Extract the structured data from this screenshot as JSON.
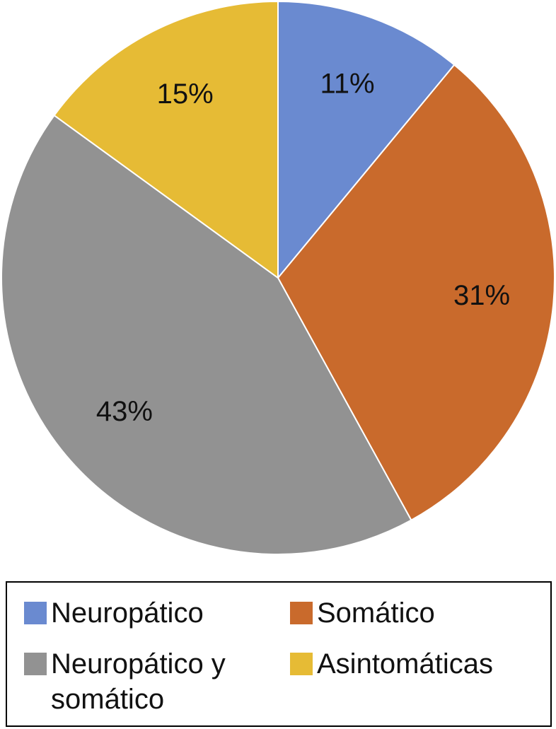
{
  "chart_data": {
    "type": "pie",
    "categories": [
      "Neuropático",
      "Somático",
      "Neuropático y somático",
      "Asintomáticas"
    ],
    "values": [
      11,
      31,
      43,
      15
    ],
    "value_labels": [
      "11%",
      "31%",
      "43%",
      "15%"
    ],
    "colors": [
      "#6a8ad0",
      "#c96a2c",
      "#929292",
      "#e6bb35"
    ],
    "legend": "bottom"
  }
}
